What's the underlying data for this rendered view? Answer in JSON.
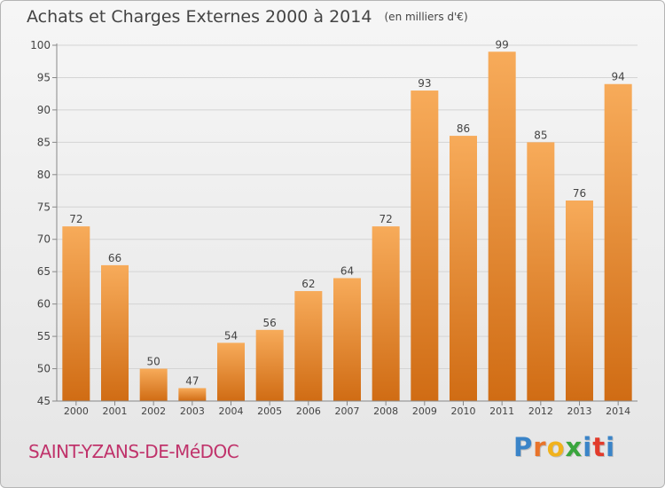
{
  "header": {
    "title": "Achats et Charges Externes 2000 à 2014",
    "unit": "(en milliers d'€)"
  },
  "footer": {
    "commune": "SAINT-YZANS-DE-MéDOC",
    "logo_letters": [
      "P",
      "r",
      "o",
      "x",
      "i",
      "t",
      "i"
    ],
    "logo_colors": [
      "#3a84c8",
      "#e8732a",
      "#f1b21c",
      "#3aa53d",
      "#3a84c8",
      "#e23b2b",
      "#3a84c8"
    ]
  },
  "colors": {
    "bar_light": "#f7ab5a",
    "bar_dark": "#d06c14",
    "grid": "#d4d4d4",
    "axis": "#888888",
    "text": "#444444"
  },
  "chart_data": {
    "type": "bar",
    "title": "Achats et Charges Externes 2000 à 2014",
    "subtitle": "(en milliers d'€)",
    "categories": [
      "2000",
      "2001",
      "2002",
      "2003",
      "2004",
      "2005",
      "2006",
      "2007",
      "2008",
      "2009",
      "2010",
      "2011",
      "2012",
      "2013",
      "2014"
    ],
    "values": [
      72,
      66,
      50,
      47,
      54,
      56,
      62,
      64,
      72,
      93,
      86,
      99,
      85,
      76,
      94
    ],
    "ylim": [
      45,
      100
    ],
    "yticks": [
      45,
      50,
      55,
      60,
      65,
      70,
      75,
      80,
      85,
      90,
      95,
      100
    ],
    "grid": true,
    "legend": "none"
  }
}
